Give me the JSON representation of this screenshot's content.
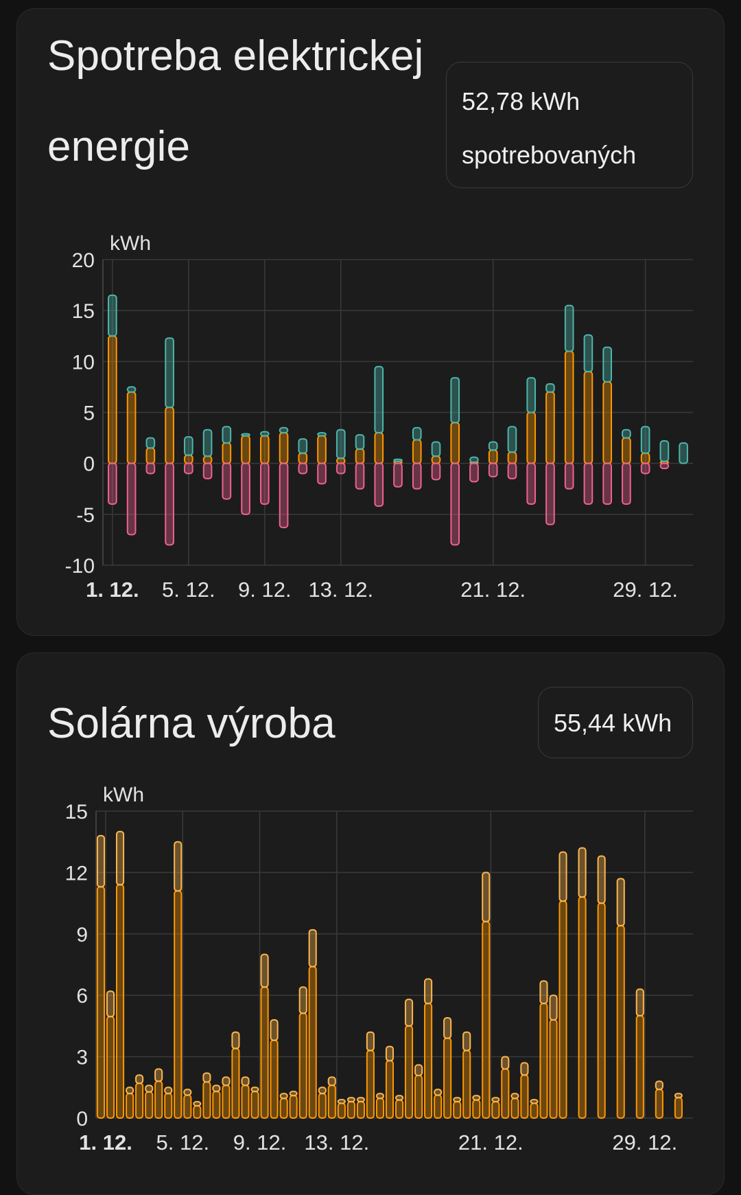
{
  "consumption": {
    "title": "Spotreba elektrickej energie",
    "badge": "52,78 kWh spotrebovaných",
    "unit": "kWh"
  },
  "solar": {
    "title": "Solárna výroba",
    "badge": "55,44 kWh",
    "unit": "kWh"
  },
  "colors": {
    "grid_import": "#4db6ac",
    "solar_used": "#ff9800",
    "export": "#f06292",
    "forecast": "#ffb74d",
    "background": "#1c1c1c"
  },
  "chart_data": [
    {
      "type": "bar",
      "stacked": true,
      "unit": "kWh",
      "ylim": [
        -10,
        20
      ],
      "yticks": [
        20,
        15,
        10,
        5,
        0,
        -5,
        -10
      ],
      "xticks": [
        "1. 12.",
        "5. 12.",
        "9. 12.",
        "13. 12.",
        "21. 12.",
        "29. 12."
      ],
      "xtick_days": [
        1,
        5,
        9,
        13,
        21,
        29
      ],
      "grid": true,
      "days": [
        1,
        2,
        3,
        4,
        5,
        6,
        7,
        8,
        9,
        10,
        11,
        12,
        13,
        14,
        15,
        16,
        17,
        18,
        19,
        20,
        21,
        22,
        23,
        24,
        25,
        26,
        27,
        28,
        29,
        30,
        31
      ],
      "series": [
        {
          "color": "#ff9800",
          "values": [
            12.5,
            7.0,
            1.5,
            5.5,
            0.8,
            0.7,
            2.0,
            2.7,
            2.7,
            3.0,
            1.0,
            2.7,
            0.5,
            1.4,
            3.0,
            0.2,
            2.3,
            0.7,
            4.0,
            0.1,
            1.3,
            1.1,
            5.0,
            7.0,
            11.0,
            9.0,
            8.0,
            2.5,
            1.0,
            0.2,
            0.0
          ]
        },
        {
          "color": "#4db6ac",
          "values": [
            4.0,
            0.5,
            1.0,
            6.8,
            1.8,
            2.6,
            1.6,
            0.2,
            0.4,
            0.5,
            1.4,
            0.3,
            2.8,
            1.4,
            6.5,
            0.2,
            1.2,
            1.4,
            4.4,
            0.5,
            0.8,
            2.5,
            3.4,
            0.8,
            4.5,
            3.6,
            3.4,
            0.8,
            2.6,
            2.0,
            2.0
          ]
        },
        {
          "color": "#f06292",
          "values": [
            -4.0,
            -7.0,
            -1.0,
            -8.0,
            -1.0,
            -1.5,
            -3.5,
            -5.0,
            -4.0,
            -6.3,
            -1.0,
            -2.0,
            -1.0,
            -2.5,
            -4.2,
            -2.3,
            -2.5,
            -1.6,
            -8.0,
            -1.8,
            -1.3,
            -1.5,
            -4.0,
            -6.0,
            -2.5,
            -4.0,
            -4.0,
            -4.0,
            -1.0,
            -0.5,
            0.0
          ]
        }
      ]
    },
    {
      "type": "bar",
      "unit": "kWh",
      "ylim": [
        0,
        15
      ],
      "yticks": [
        15,
        12,
        9,
        6,
        3,
        0
      ],
      "xticks": [
        "1. 12.",
        "5. 12.",
        "9. 12.",
        "13. 12.",
        "21. 12.",
        "29. 12."
      ],
      "xtick_days": [
        1,
        5,
        9,
        13,
        21,
        29
      ],
      "grid": true,
      "days": [
        1,
        2,
        3,
        4,
        5,
        6,
        7,
        8,
        9,
        10,
        11,
        12,
        13,
        14,
        15,
        16,
        17,
        18,
        19,
        20,
        21,
        22,
        23,
        24,
        25,
        26,
        27,
        28,
        29,
        30,
        31
      ],
      "series": [
        {
          "color": "#ff9800",
          "values": [
            11.3,
            11.4,
            1.7,
            1.8,
            11.1,
            0.6,
            1.3,
            3.4,
            1.3,
            3.8,
            1.1,
            7.4,
            1.6,
            0.8,
            3.3,
            2.8,
            4.5,
            5.6,
            3.9,
            3.3,
            9.6,
            2.4,
            2.1,
            5.6,
            10.6,
            10.8,
            10.5,
            9.4,
            5.0,
            1.4,
            1.0
          ]
        },
        {
          "color": "#ffb74d",
          "values": [
            13.8,
            14.0,
            2.1,
            2.4,
            13.5,
            0.8,
            1.6,
            4.2,
            1.5,
            4.8,
            1.3,
            9.2,
            2.0,
            1.0,
            4.2,
            3.5,
            5.8,
            6.8,
            4.9,
            4.2,
            12.0,
            3.0,
            2.7,
            6.7,
            13.0,
            13.2,
            12.8,
            11.7,
            6.3,
            1.8,
            1.2
          ]
        },
        {
          "color": "#ffb74d",
          "values": [
            6.2,
            1.5,
            1.6,
            1.5,
            1.4,
            2.2,
            2.0,
            2.0,
            8.0,
            1.2,
            6.4,
            1.5,
            0.9,
            1.0,
            1.2,
            1.1,
            2.6,
            1.4,
            1.0,
            1.1,
            1.0,
            1.2,
            0.9,
            6.0,
            0,
            0,
            0,
            0,
            0,
            0,
            0
          ]
        }
      ]
    }
  ]
}
